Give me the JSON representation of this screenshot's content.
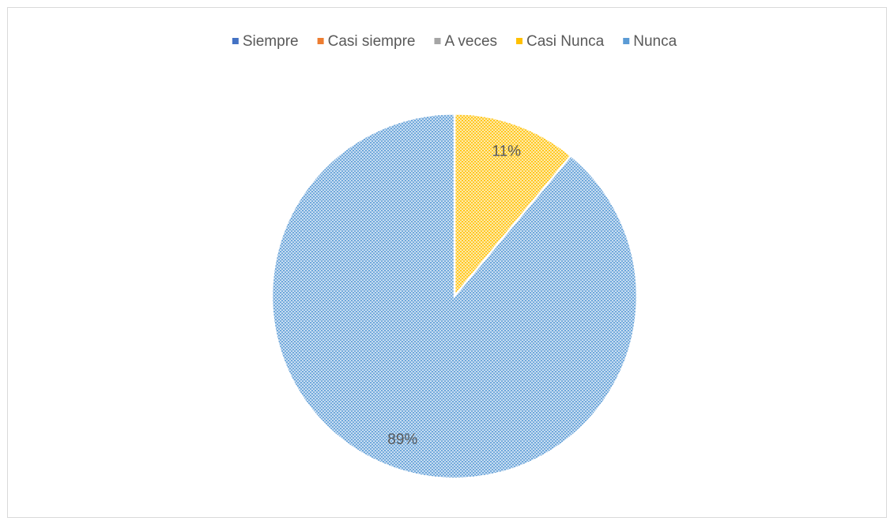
{
  "chart_data": {
    "type": "pie",
    "categories": [
      "Siempre",
      "Casi siempre",
      "A veces",
      "Casi Nunca",
      "Nunca"
    ],
    "values": [
      0,
      0,
      0,
      11,
      89
    ],
    "value_labels": [
      null,
      null,
      null,
      "11%",
      "89%"
    ],
    "colors": [
      "#4472c4",
      "#ed7d31",
      "#a5a5a5",
      "#ffc000",
      "#5b9bd5"
    ],
    "legend": "top"
  }
}
